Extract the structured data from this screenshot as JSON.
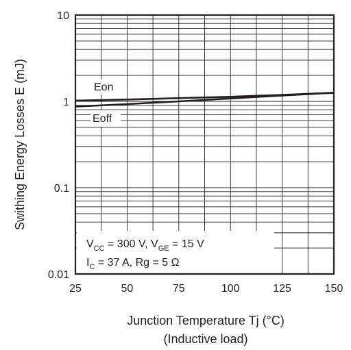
{
  "chart_data": {
    "type": "line",
    "xlabel": "Junction Temperature   Tj  (°C)",
    "xlabel_sub": "(Inductive load)",
    "ylabel": "Swithing Energy Losses   E  (mJ)",
    "x_ticks": [
      "25",
      "50",
      "75",
      "100",
      "125",
      "150"
    ],
    "y_ticks": [
      "10",
      "1",
      "0.1",
      "0.01"
    ],
    "xlim": [
      25,
      150
    ],
    "ylim": [
      0.01,
      10
    ],
    "y_scale": "log",
    "grid": true,
    "series": [
      {
        "name": "Eon",
        "x": [
          25,
          50,
          75,
          100,
          125,
          150
        ],
        "y": [
          1.02,
          1.05,
          1.09,
          1.13,
          1.19,
          1.26
        ]
      },
      {
        "name": "Eoff",
        "x": [
          25,
          50,
          75,
          100,
          125,
          150
        ],
        "y": [
          0.87,
          0.93,
          1.0,
          1.08,
          1.17,
          1.26
        ]
      }
    ],
    "conditions": {
      "line1": {
        "a": "V",
        "a_sub": "CC",
        "b": " = 300 V, V",
        "b_sub": "GE",
        "c": " = 15 V"
      },
      "line2": {
        "a": "I",
        "a_sub": "C",
        "b": " = 37 A, Rg = 5 Ω"
      }
    }
  }
}
